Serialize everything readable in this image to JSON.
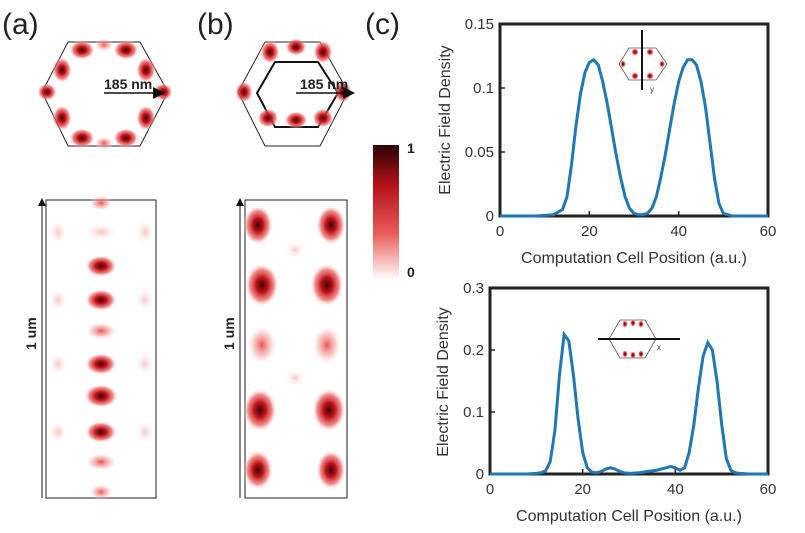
{
  "panels": {
    "a": "(a)",
    "b": "(b)",
    "c": "(c)"
  },
  "annotations": {
    "hex_a": "185 nm",
    "hex_b": "185 nm",
    "rect_a": "1 um",
    "rect_b": "1 um"
  },
  "colorbar": {
    "max": "1",
    "min": "0"
  },
  "chart_data": [
    {
      "type": "line",
      "xlabel": "Computation Cell Position (a.u.)",
      "ylabel": "Electric Field Density",
      "xlim": [
        0,
        60
      ],
      "ylim": [
        0,
        0.15
      ],
      "xticks": [
        "0",
        "20",
        "40",
        "60"
      ],
      "yticks": [
        "0",
        "0.05",
        "0.1",
        "0.15"
      ],
      "inset_axis_label": "y",
      "color": "#1f77b4",
      "x": [
        0,
        4,
        8,
        12,
        14,
        15,
        16,
        17,
        18,
        19,
        20,
        21,
        22,
        23,
        24,
        25,
        26,
        27,
        28,
        29,
        30,
        31,
        32,
        33,
        34,
        35,
        36,
        37,
        38,
        39,
        40,
        41,
        42,
        43,
        44,
        45,
        46,
        47,
        48,
        49,
        50,
        52,
        56,
        60
      ],
      "y": [
        0,
        0,
        0,
        0.001,
        0.005,
        0.015,
        0.04,
        0.07,
        0.095,
        0.112,
        0.12,
        0.122,
        0.118,
        0.105,
        0.088,
        0.068,
        0.048,
        0.03,
        0.015,
        0.006,
        0.002,
        0.001,
        0.001,
        0.002,
        0.006,
        0.015,
        0.03,
        0.048,
        0.068,
        0.088,
        0.105,
        0.116,
        0.122,
        0.122,
        0.118,
        0.105,
        0.085,
        0.058,
        0.03,
        0.01,
        0.002,
        0,
        0,
        0
      ]
    },
    {
      "type": "line",
      "xlabel": "Computation Cell Position (a.u.)",
      "ylabel": "Electric Field Density",
      "xlim": [
        0,
        60
      ],
      "ylim": [
        0,
        0.3
      ],
      "xticks": [
        "0",
        "20",
        "40",
        "60"
      ],
      "yticks": [
        "0",
        "0.1",
        "0.2",
        "0.3"
      ],
      "inset_axis_label": "x",
      "color": "#1f77b4",
      "x": [
        0,
        4,
        8,
        10,
        11,
        12,
        13,
        14,
        15,
        16,
        17,
        18,
        19,
        20,
        21,
        22,
        23,
        24,
        25,
        26,
        27,
        28,
        29,
        30,
        32,
        34,
        36,
        37,
        38,
        39,
        40,
        41,
        42,
        43,
        44,
        45,
        46,
        47,
        48,
        49,
        50,
        51,
        52,
        53,
        54,
        56,
        60
      ],
      "y": [
        0,
        0,
        0,
        0.001,
        0.002,
        0.005,
        0.02,
        0.07,
        0.16,
        0.225,
        0.215,
        0.16,
        0.09,
        0.035,
        0.01,
        0.003,
        0.002,
        0.004,
        0.008,
        0.01,
        0.008,
        0.004,
        0.002,
        0.001,
        0.002,
        0.004,
        0.006,
        0.008,
        0.01,
        0.012,
        0.01,
        0.006,
        0.01,
        0.035,
        0.08,
        0.14,
        0.19,
        0.212,
        0.2,
        0.15,
        0.08,
        0.025,
        0.006,
        0.002,
        0.001,
        0,
        0
      ]
    }
  ]
}
